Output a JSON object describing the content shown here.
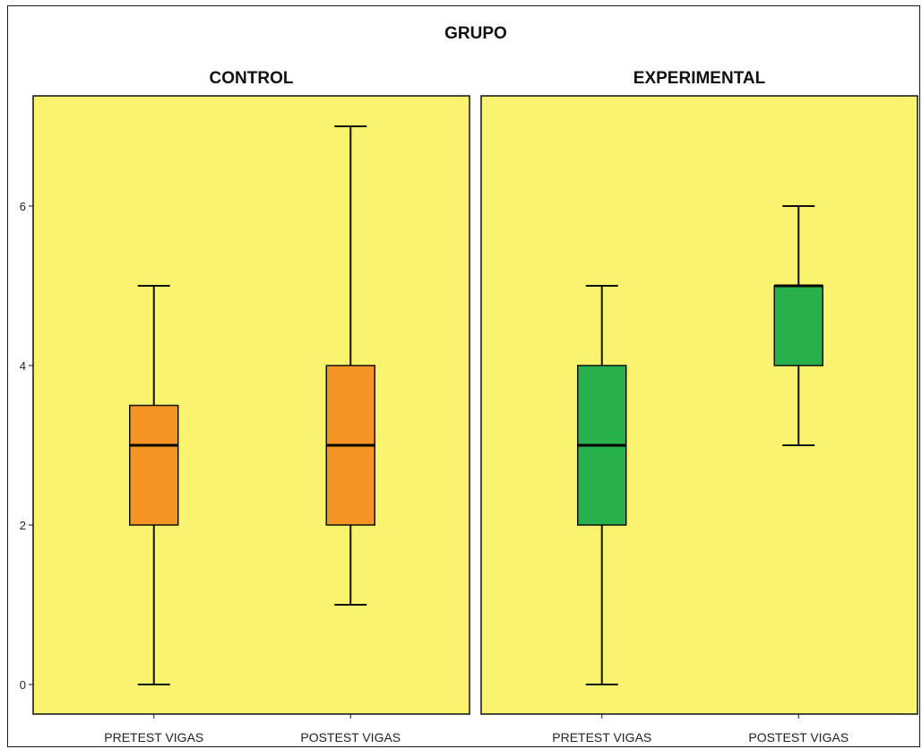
{
  "chart_data": {
    "type": "boxplot",
    "title": "GRUPO",
    "panels": [
      {
        "name": "CONTROL",
        "color": "#f39424",
        "boxes": [
          {
            "category": "PRETEST VIGAS",
            "min": 0,
            "q1": 2,
            "median": 3,
            "q3": 3.5,
            "max": 5
          },
          {
            "category": "POSTEST VIGAS",
            "min": 1,
            "q1": 2,
            "median": 3,
            "q3": 4,
            "max": 7
          }
        ]
      },
      {
        "name": "EXPERIMENTAL",
        "color": "#28b04a",
        "boxes": [
          {
            "category": "PRETEST VIGAS",
            "min": 0,
            "q1": 2,
            "median": 3,
            "q3": 4,
            "max": 5
          },
          {
            "category": "POSTEST VIGAS",
            "min": 3,
            "q1": 4,
            "median": 5,
            "q3": 5,
            "max": 6
          }
        ]
      }
    ],
    "y_ticks": [
      "0",
      "2",
      "4",
      "6"
    ],
    "ylim": [
      0,
      7.6
    ],
    "panel_background": "#faf36e",
    "grid": false
  }
}
